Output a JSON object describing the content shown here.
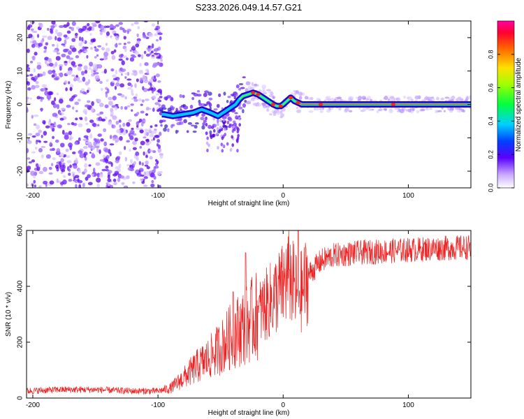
{
  "title": "S233.2026.049.14.57.G21",
  "chart_data": [
    {
      "type": "heatmap",
      "name": "spectrogram",
      "xlabel": "Height of straight line (km)",
      "ylabel": "Frequency (Hz)",
      "xlim": [
        -205,
        150
      ],
      "ylim": [
        -25,
        25
      ],
      "xticks": [
        -200,
        -100,
        0,
        100
      ],
      "yticks": [
        -20,
        -10,
        0,
        10,
        20
      ],
      "ridge": {
        "x": [
          -95,
          -88,
          -80,
          -72,
          -65,
          -58,
          -52,
          -46,
          -42,
          -38,
          -35,
          -32,
          -28,
          -24,
          -20,
          -16,
          -12,
          -8,
          -5,
          -2,
          0,
          3,
          6,
          9,
          12,
          15,
          20,
          30,
          50,
          80,
          110,
          150
        ],
        "y": [
          -3,
          -3.5,
          -3,
          -2.5,
          -1.5,
          -2.5,
          -3.5,
          -2,
          -1,
          0,
          1.5,
          2.5,
          3,
          3.5,
          3,
          2,
          1,
          0,
          -0.5,
          -0.5,
          0,
          1,
          2,
          1,
          0.5,
          0,
          0,
          0,
          0,
          0,
          0,
          0
        ]
      },
      "colorbar": {
        "label": "Normalized spectral amplitude",
        "range": [
          0,
          1
        ],
        "ticks": [
          0.0,
          0.2,
          0.4,
          0.6,
          0.8
        ],
        "tick_labels": [
          "0.0",
          "0.2",
          "0.4",
          "0.6",
          "0.8"
        ]
      }
    },
    {
      "type": "line",
      "name": "snr",
      "xlabel": "Height of straight line (km)",
      "ylabel": "SNR (10 * v/v)",
      "xlim": [
        -205,
        150
      ],
      "ylim": [
        0,
        600
      ],
      "xticks": [
        -200,
        -100,
        0,
        100
      ],
      "yticks": [
        0,
        200,
        400,
        600
      ],
      "color": "#ee2222",
      "series": [
        {
          "name": "SNR",
          "x": [
            -205,
            -180,
            -150,
            -120,
            -100,
            -90,
            -80,
            -70,
            -60,
            -50,
            -40,
            -30,
            -20,
            -10,
            0,
            5,
            10,
            15,
            20,
            30,
            40,
            60,
            80,
            100,
            120,
            150
          ],
          "y": [
            25,
            30,
            30,
            25,
            25,
            35,
            70,
            110,
            140,
            180,
            230,
            260,
            300,
            350,
            400,
            440,
            380,
            380,
            440,
            490,
            510,
            520,
            525,
            530,
            535,
            540
          ],
          "spikes": [
            {
              "x": -30,
              "y": 520
            },
            {
              "x": -40,
              "y": 380
            },
            {
              "x": 12,
              "y": 600
            },
            {
              "x": 5,
              "y": 460
            },
            {
              "x": -20,
              "y": 330
            }
          ]
        }
      ]
    }
  ]
}
